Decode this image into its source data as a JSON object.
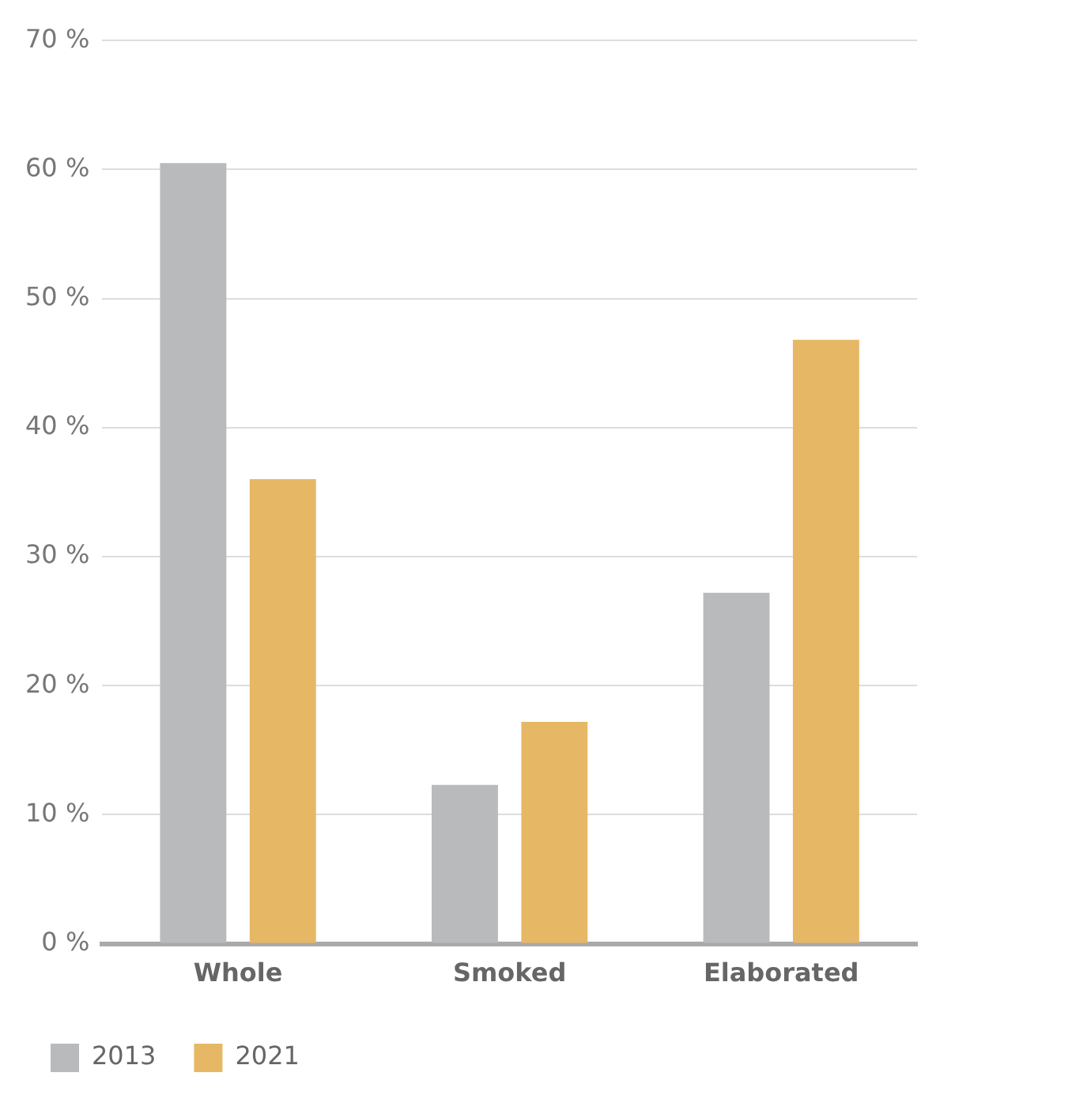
{
  "chart_data": {
    "type": "bar",
    "categories": [
      "Whole",
      "Smoked",
      "Elaborated"
    ],
    "series": [
      {
        "name": "2013",
        "color": "#b9babb",
        "values": [
          60.5,
          12.3,
          27.2
        ]
      },
      {
        "name": "2021",
        "color": "#e6b865",
        "values": [
          36,
          17.2,
          46.8
        ]
      }
    ],
    "ylim": [
      0,
      70
    ],
    "yticks": [
      {
        "value": 0,
        "label": "0 %"
      },
      {
        "value": 10,
        "label": "10 %"
      },
      {
        "value": 20,
        "label": "20 %"
      },
      {
        "value": 30,
        "label": "30 %"
      },
      {
        "value": 40,
        "label": "40 %"
      },
      {
        "value": 50,
        "label": "50 %"
      },
      {
        "value": 60,
        "label": "60 %"
      },
      {
        "value": 70,
        "label": "70 %"
      }
    ],
    "grid": "y",
    "legend": "bottom left"
  }
}
